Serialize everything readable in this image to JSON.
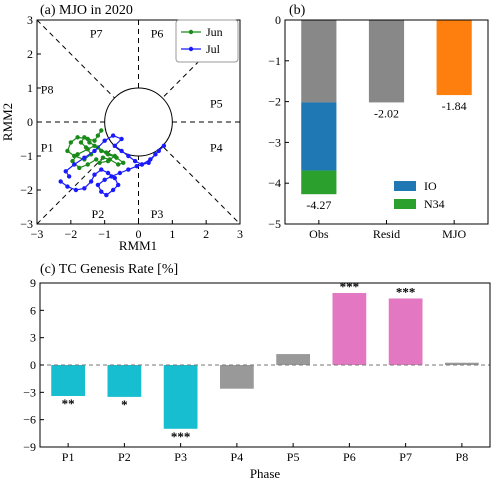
{
  "chart_data": [
    {
      "type": "scatter",
      "title": "(a) MJO in 2020",
      "xlabel": "RMM1",
      "ylabel": "RMM2",
      "xlim": [
        -3,
        3
      ],
      "ylim": [
        -3,
        3
      ],
      "xticks": [
        "−3",
        "−2",
        "−1",
        "0",
        "1",
        "2",
        "3"
      ],
      "yticks": [
        "−3",
        "−2",
        "−1",
        "0",
        "1",
        "2",
        "3"
      ],
      "phase_labels": [
        "P1",
        "P2",
        "P3",
        "P4",
        "P5",
        "P6",
        "P7",
        "P8"
      ],
      "legend_position": "top-right",
      "series": [
        {
          "name": "Jun",
          "color": "#1a8a1a",
          "x": [
            -1.1,
            -1.2,
            -1.3,
            -1.5,
            -1.8,
            -2.0,
            -2.1,
            -1.9,
            -1.6,
            -1.4,
            -1.55,
            -1.7,
            -1.6,
            -1.45,
            -1.2,
            -0.95,
            -0.7,
            -0.9,
            -1.15,
            -1.05,
            -0.85,
            -0.6,
            -0.45,
            -0.65,
            -0.9,
            -1.1,
            -1.3,
            -1.5,
            -1.8,
            -1.95,
            -1.75,
            -1.5,
            -1.25
          ],
          "y": [
            -0.25,
            -0.4,
            -0.55,
            -0.5,
            -0.45,
            -0.6,
            -0.85,
            -1.0,
            -1.1,
            -0.95,
            -0.75,
            -0.6,
            -0.45,
            -0.6,
            -0.75,
            -0.9,
            -1.0,
            -1.15,
            -1.2,
            -1.05,
            -1.1,
            -1.25,
            -1.2,
            -1.05,
            -0.95,
            -0.85,
            -0.7,
            -0.8,
            -0.95,
            -1.15,
            -1.35,
            -1.25,
            -1.1
          ]
        },
        {
          "name": "Jul",
          "color": "#1a1aff",
          "x": [
            -2.3,
            -2.1,
            -1.85,
            -1.6,
            -1.4,
            -1.3,
            -1.1,
            -0.9,
            -0.7,
            -0.6,
            -0.75,
            -0.95,
            -1.1,
            -1.2,
            -1.0,
            -0.8,
            -0.55,
            -0.3,
            -0.05,
            0.1,
            0.3,
            0.5,
            0.75,
            0.6,
            0.35,
            0.1,
            -0.1,
            -0.3,
            -0.5,
            -0.7,
            -0.5,
            -0.75,
            -1.0,
            -1.3,
            -1.6,
            -1.9,
            -2.15,
            -2.05
          ],
          "y": [
            -1.75,
            -1.9,
            -2.0,
            -1.95,
            -1.75,
            -1.55,
            -1.4,
            -1.5,
            -1.65,
            -1.85,
            -2.0,
            -2.15,
            -2.05,
            -1.85,
            -1.7,
            -1.6,
            -1.5,
            -1.4,
            -1.3,
            -1.25,
            -1.2,
            -0.95,
            -0.7,
            -0.85,
            -1.1,
            -1.25,
            -1.15,
            -1.0,
            -0.85,
            -0.7,
            -0.5,
            -0.4,
            -0.55,
            -0.85,
            -1.05,
            -1.25,
            -1.45,
            -1.6
          ]
        }
      ]
    },
    {
      "type": "bar",
      "title": "(b)",
      "categories": [
        "Obs",
        "Resid",
        "MJO"
      ],
      "ylim": [
        -5,
        0
      ],
      "yticks": [
        "−5",
        "−4",
        "−3",
        "−2",
        "−1",
        "0"
      ],
      "legend_position": "bottom-right",
      "stacked": true,
      "series": [
        {
          "name": "",
          "color": "#888888",
          "values": [
            -2.02,
            -2.02,
            0
          ]
        },
        {
          "name": "IO",
          "color": "#1f77b4",
          "values": [
            -1.67,
            0,
            0
          ]
        },
        {
          "name": "N34",
          "color": "#2ca02c",
          "values": [
            -0.58,
            0,
            0
          ]
        },
        {
          "name": "",
          "color": "#ff7f0e",
          "values": [
            0,
            0,
            -1.84
          ]
        }
      ],
      "totals": [
        -4.27,
        -2.02,
        -1.84
      ],
      "value_labels": [
        "-4.27",
        "-2.02",
        "-1.84"
      ]
    },
    {
      "type": "bar",
      "title": "(c) TC Genesis Rate [%]",
      "xlabel": "Phase",
      "ylabel": "",
      "categories": [
        "P1",
        "P2",
        "P3",
        "P4",
        "P5",
        "P6",
        "P7",
        "P8"
      ],
      "values": [
        -3.4,
        -3.5,
        -7.0,
        -2.6,
        1.2,
        7.9,
        7.3,
        0.25
      ],
      "colors": [
        "#17becf",
        "#17becf",
        "#17becf",
        "#999999",
        "#999999",
        "#e377c2",
        "#e377c2",
        "#999999"
      ],
      "significance": [
        "**",
        "*",
        "***",
        "",
        "",
        "***",
        "***",
        ""
      ],
      "ylim": [
        -9,
        9
      ],
      "yticks": [
        "−9",
        "−6",
        "−3",
        "0",
        "3",
        "6",
        "9"
      ]
    }
  ]
}
